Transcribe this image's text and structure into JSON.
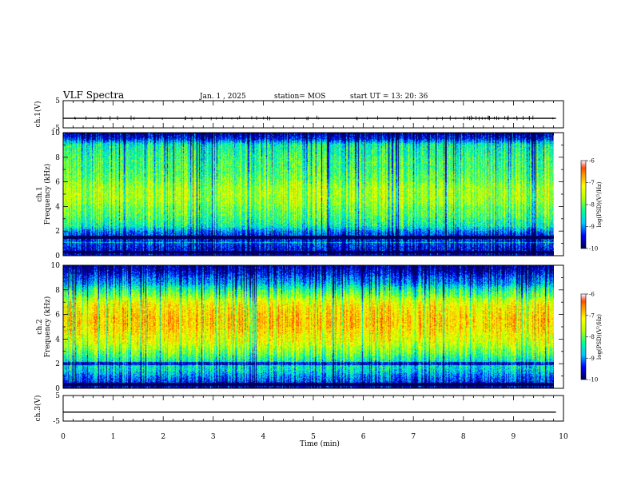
{
  "header": {
    "title": "VLF Spectra",
    "date": "Jan. 1 , 2025",
    "station": "station= MOS",
    "start": "start UT =   13: 20: 36"
  },
  "colors": {
    "spectrum_scale": [
      "#000064",
      "#0000ff",
      "#00c8ff",
      "#00ff96",
      "#b4ff00",
      "#ffff00",
      "#ff8c00",
      "#ff0000",
      "#ffffff"
    ],
    "trace": "#000000"
  },
  "chart_data": [
    {
      "type": "line",
      "name_panel": "ch1-waveform",
      "ylabel": "ch.1(V)",
      "ylim": [
        -5,
        5
      ],
      "yticks": [
        "5",
        "-5"
      ],
      "xlim": [
        0,
        10
      ],
      "baseline": -1.5
    },
    {
      "type": "heatmap",
      "name_panel": "ch1-spectrogram",
      "ylabel_lines": [
        "ch.1",
        "Frequency (kHz)"
      ],
      "ylim": [
        0,
        10
      ],
      "yticks": [
        "0",
        "2",
        "4",
        "6",
        "8",
        "10"
      ],
      "xlim": [
        0,
        9.85
      ],
      "profile_db": [
        -9.8,
        -9.5,
        -9.3,
        -9.4,
        -9.1,
        -8.4,
        -8.2,
        -8.0,
        -7.9,
        -7.7,
        -7.6,
        -7.6,
        -7.7,
        -7.9,
        -8.0,
        -8.1,
        -8.1,
        -8.2,
        -8.3,
        -8.4,
        -9.4,
        -9.8
      ],
      "colorbar": {
        "min": -10,
        "max": -6,
        "ticks": [
          "-6",
          "-7",
          "-8",
          "-9",
          "-10"
        ],
        "label": "log(PSD)(V²/Hz)"
      }
    },
    {
      "type": "heatmap",
      "name_panel": "ch2-spectrogram",
      "ylabel_lines": [
        "ch.2",
        "Frequency (kHz)"
      ],
      "ylim": [
        0,
        10
      ],
      "yticks": [
        "0",
        "2",
        "4",
        "6",
        "8",
        "10"
      ],
      "xlim": [
        0,
        9.85
      ],
      "profile_db": [
        -9.7,
        -9.3,
        -9.0,
        -8.6,
        -8.5,
        -8.3,
        -7.9,
        -7.6,
        -7.3,
        -7.2,
        -7.0,
        -6.9,
        -6.9,
        -7.0,
        -7.1,
        -7.4,
        -7.9,
        -8.3,
        -8.9,
        -9.2,
        -9.6,
        -9.8
      ],
      "colorbar": {
        "min": -10,
        "max": -6,
        "ticks": [
          "-6",
          "-7",
          "-8",
          "-9",
          "-10"
        ],
        "label": "log(PSD)(V²/Hz)"
      }
    },
    {
      "type": "line",
      "name_panel": "ch3-waveform",
      "ylabel": "ch.3(V)",
      "ylim": [
        -5,
        5
      ],
      "yticks": [
        "5",
        "-5"
      ],
      "xlim": [
        0,
        10
      ],
      "baseline": -1.5
    }
  ],
  "xaxis": {
    "label": "Time (min)",
    "ticks": [
      "0",
      "1",
      "2",
      "3",
      "4",
      "5",
      "6",
      "7",
      "8",
      "9",
      "10"
    ],
    "range": [
      0,
      10
    ]
  }
}
